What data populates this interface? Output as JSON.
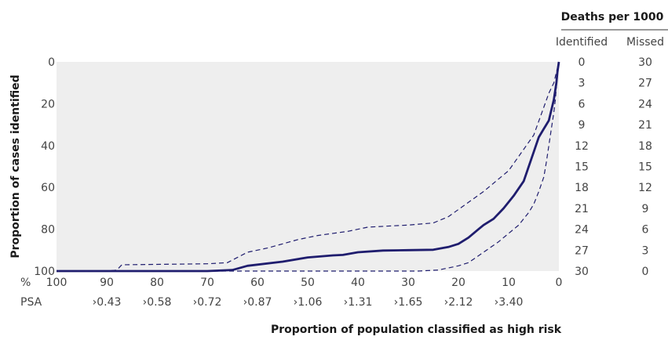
{
  "chart_data": {
    "type": "line",
    "title": "",
    "xlabel": "Proportion of population classified as high risk",
    "ylabel": "Proportion of cases identified",
    "xlim": [
      100,
      0
    ],
    "ylim": [
      0,
      100
    ],
    "x_axis_unit_label": "%",
    "x_ticks": [
      100,
      90,
      80,
      70,
      60,
      50,
      40,
      30,
      20,
      10,
      0
    ],
    "y_ticks": [
      0,
      20,
      40,
      60,
      80,
      100
    ],
    "psa_axis_label": "PSA",
    "psa_ticks": [
      {
        "x": 90,
        "label": "›0.43"
      },
      {
        "x": 80,
        "label": "›0.58"
      },
      {
        "x": 70,
        "label": "›0.72"
      },
      {
        "x": 60,
        "label": "›0.87"
      },
      {
        "x": 50,
        "label": "›1.06"
      },
      {
        "x": 40,
        "label": "›1.31"
      },
      {
        "x": 30,
        "label": "›1.65"
      },
      {
        "x": 20,
        "label": "›2.12"
      },
      {
        "x": 10,
        "label": "›3.40"
      }
    ],
    "series": [
      {
        "style": "solid",
        "x": [
          100,
          70,
          65,
          62,
          55,
          50,
          45,
          43,
          40,
          35,
          30,
          25,
          22,
          20,
          18,
          16,
          15,
          13,
          11,
          9,
          7,
          5,
          4,
          3,
          2.5,
          2,
          1,
          0.5,
          0.3,
          0
        ],
        "y": [
          100,
          100,
          99.5,
          97.5,
          95.5,
          93.5,
          92.5,
          92.3,
          91,
          90.2,
          90,
          89.8,
          88.5,
          87,
          84,
          80,
          78,
          75,
          70,
          64,
          57,
          43,
          36,
          32,
          30,
          28,
          18,
          10,
          5,
          0
        ]
      },
      {
        "style": "dashed",
        "x": [
          100,
          90,
          88,
          87,
          70,
          66,
          62,
          58,
          55,
          52,
          48,
          42,
          38,
          30,
          25,
          22,
          15,
          10,
          5,
          2,
          1,
          0.5,
          0.3,
          0
        ],
        "y": [
          100,
          100,
          99.5,
          97,
          96.5,
          96,
          91,
          89,
          87,
          85,
          83,
          81,
          79,
          78,
          77,
          74,
          62,
          52,
          35,
          15,
          10,
          5,
          3,
          0
        ]
      },
      {
        "style": "dashed",
        "x": [
          100,
          62,
          28,
          24,
          20,
          18,
          15,
          12,
          10,
          8,
          6,
          5,
          4,
          3,
          2.5,
          2,
          1.5,
          1,
          0.7,
          0.5,
          0.3,
          0
        ],
        "y": [
          100,
          100,
          100,
          99.5,
          97.5,
          96,
          91,
          86,
          82,
          78,
          72,
          68,
          62,
          55,
          48,
          40,
          32,
          24,
          18,
          12,
          6,
          0
        ]
      }
    ],
    "side_table": {
      "title": "Deaths per 1000",
      "columns": [
        "Identified",
        "Missed"
      ],
      "rows": [
        {
          "y": 0,
          "identified": "0",
          "missed": "30"
        },
        {
          "y": 10,
          "identified": "3",
          "missed": "27"
        },
        {
          "y": 20,
          "identified": "6",
          "missed": "24"
        },
        {
          "y": 30,
          "identified": "9",
          "missed": "21"
        },
        {
          "y": 40,
          "identified": "12",
          "missed": "18"
        },
        {
          "y": 50,
          "identified": "15",
          "missed": "15"
        },
        {
          "y": 60,
          "identified": "18",
          "missed": "12"
        },
        {
          "y": 70,
          "identified": "21",
          "missed": "9"
        },
        {
          "y": 80,
          "identified": "24",
          "missed": "6"
        },
        {
          "y": 90,
          "identified": "27",
          "missed": "3"
        },
        {
          "y": 100,
          "identified": "30",
          "missed": "0"
        }
      ]
    },
    "colors": {
      "plot_bg": "#eeeeee",
      "line": "#1f1d6e",
      "text": "#444444",
      "heading": "#1a1a1a"
    },
    "grid": false
  }
}
